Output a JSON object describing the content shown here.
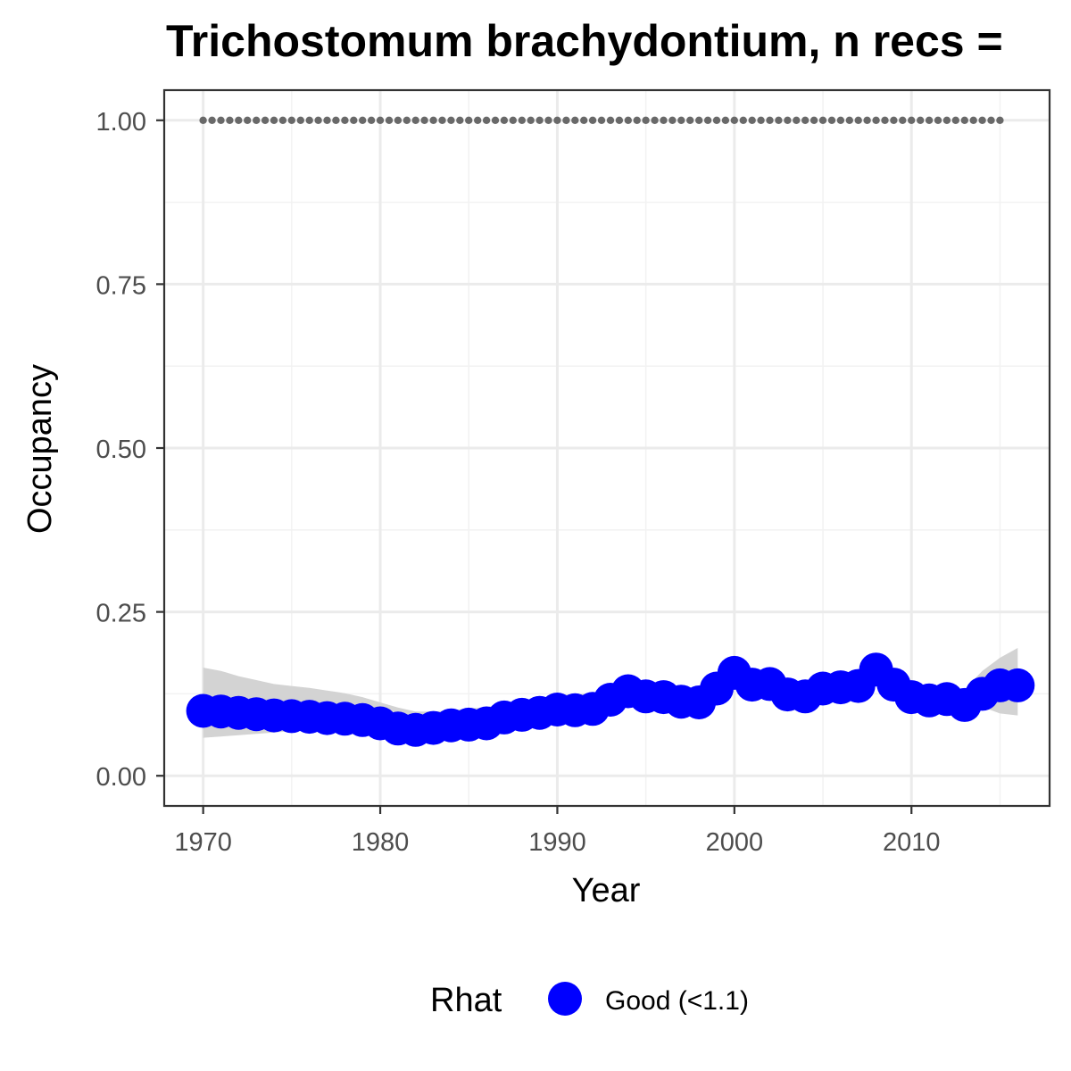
{
  "chart_data": {
    "type": "line",
    "title": "Trichostomum brachydontium, n recs =",
    "xlabel": "Year",
    "ylabel": "Occupancy",
    "xlim": [
      1967.8,
      2017.8
    ],
    "ylim": [
      -0.046,
      1.046
    ],
    "x_ticks": [
      1970,
      1980,
      1990,
      2000,
      2010
    ],
    "x_tick_labels": [
      "1970",
      "1980",
      "1990",
      "2000",
      "2010"
    ],
    "y_ticks": [
      0.0,
      0.25,
      0.5,
      0.75,
      1.0
    ],
    "y_tick_labels": [
      "0.00",
      "0.25",
      "0.50",
      "0.75",
      "1.00"
    ],
    "grid": true,
    "legend": {
      "title": "Rhat",
      "position": "bottom",
      "entries": [
        {
          "label": "Good (<1.1)",
          "color": "#0000ff"
        }
      ]
    },
    "series": [
      {
        "name": "Good (<1.1)",
        "color": "#0000ff",
        "x": [
          1970,
          1971,
          1972,
          1973,
          1974,
          1975,
          1976,
          1977,
          1978,
          1979,
          1980,
          1981,
          1982,
          1983,
          1984,
          1985,
          1986,
          1987,
          1988,
          1989,
          1990,
          1991,
          1992,
          1993,
          1994,
          1995,
          1996,
          1997,
          1998,
          1999,
          2000,
          2001,
          2002,
          2003,
          2004,
          2005,
          2006,
          2007,
          2008,
          2009,
          2010,
          2011,
          2012,
          2013,
          2014,
          2015,
          2016
        ],
        "y": [
          0.099,
          0.098,
          0.096,
          0.094,
          0.092,
          0.091,
          0.09,
          0.088,
          0.087,
          0.085,
          0.08,
          0.072,
          0.07,
          0.073,
          0.077,
          0.078,
          0.08,
          0.089,
          0.093,
          0.096,
          0.101,
          0.1,
          0.102,
          0.116,
          0.129,
          0.121,
          0.12,
          0.113,
          0.112,
          0.133,
          0.157,
          0.139,
          0.14,
          0.124,
          0.121,
          0.133,
          0.135,
          0.137,
          0.162,
          0.139,
          0.12,
          0.115,
          0.117,
          0.108,
          0.125,
          0.138,
          0.138
        ]
      }
    ],
    "ribbon": {
      "color": "#d3d3d3",
      "lower": [
        0.058,
        0.06,
        0.062,
        0.064,
        0.066,
        0.068,
        0.069,
        0.07,
        0.07,
        0.068,
        0.064,
        0.06,
        0.058,
        0.06,
        0.064,
        0.067,
        0.07,
        0.078,
        0.083,
        0.088,
        0.093,
        0.094,
        0.097,
        0.108,
        0.116,
        0.114,
        0.112,
        0.106,
        0.105,
        0.12,
        0.14,
        0.122,
        0.118,
        0.11,
        0.108,
        0.118,
        0.12,
        0.122,
        0.138,
        0.118,
        0.105,
        0.102,
        0.105,
        0.095,
        0.105,
        0.095,
        0.092
      ],
      "upper": [
        0.165,
        0.16,
        0.152,
        0.146,
        0.14,
        0.137,
        0.134,
        0.13,
        0.126,
        0.12,
        0.112,
        0.104,
        0.098,
        0.098,
        0.1,
        0.103,
        0.104,
        0.112,
        0.115,
        0.118,
        0.124,
        0.124,
        0.126,
        0.134,
        0.148,
        0.141,
        0.138,
        0.128,
        0.126,
        0.146,
        0.172,
        0.16,
        0.162,
        0.147,
        0.142,
        0.15,
        0.152,
        0.156,
        0.18,
        0.16,
        0.142,
        0.134,
        0.135,
        0.132,
        0.16,
        0.18,
        0.195
      ]
    },
    "reference_line": {
      "y": 1.0,
      "x_from": 1970,
      "x_to": 2015,
      "style": "dotted",
      "color": "#696969"
    }
  }
}
